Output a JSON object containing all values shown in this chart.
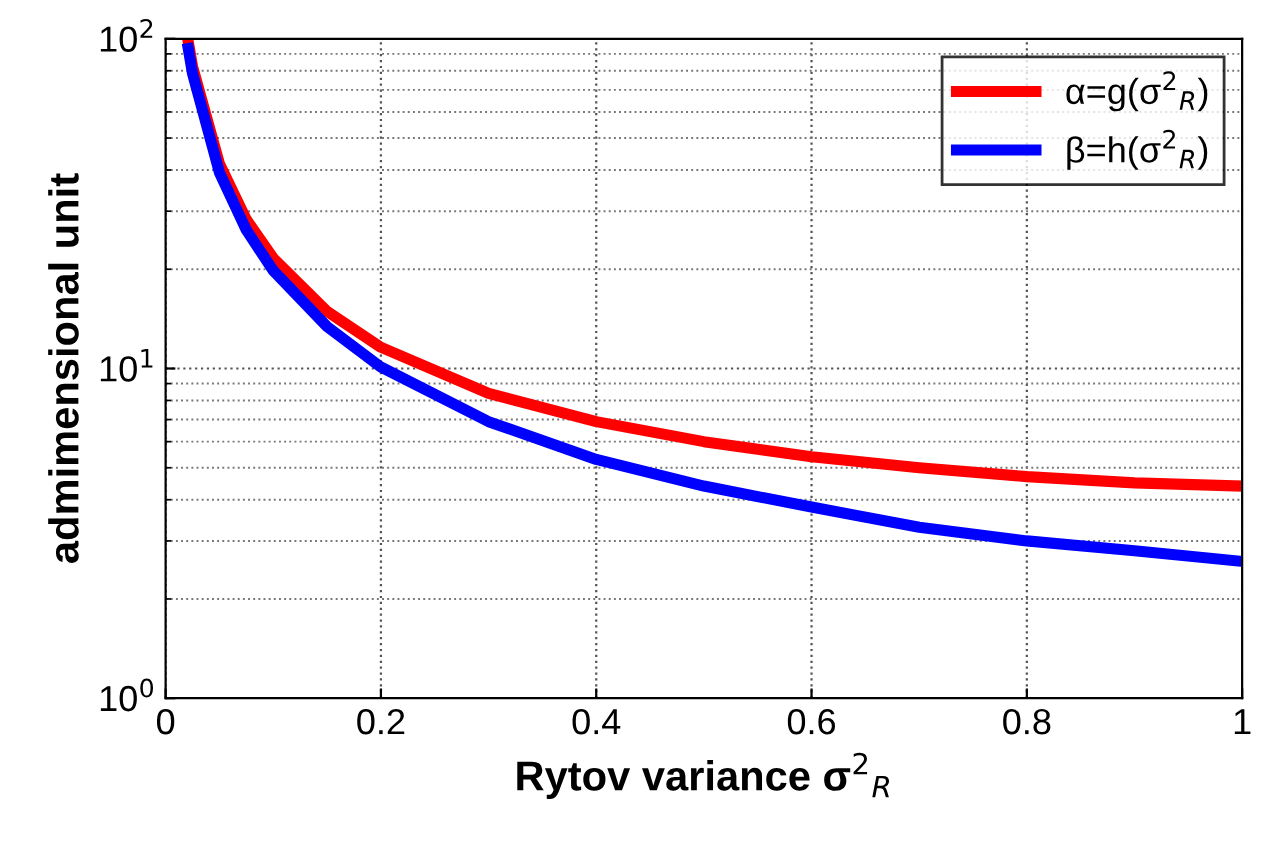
{
  "chart_data": {
    "type": "line",
    "xlabel": "Rytov variance σ$^{2}$$_{R}$",
    "ylabel": "admimensional unit",
    "x": [
      0.021,
      0.025,
      0.05,
      0.075,
      0.1,
      0.15,
      0.2,
      0.3,
      0.4,
      0.5,
      0.6,
      0.7,
      0.8,
      0.9,
      1.0
    ],
    "series": [
      {
        "name": "α=g(σ$^{2}$$_{R}$)",
        "color": "#ff0000",
        "values": [
          97.9,
          82.4,
          41.8,
          28.3,
          21.6,
          14.9,
          11.6,
          8.4,
          6.9,
          6.0,
          5.4,
          5.0,
          4.7,
          4.5,
          4.4
        ]
      },
      {
        "name": "β=h(σ$^{2}$$_{R}$)",
        "color": "#0000ff",
        "values": [
          93.4,
          78.5,
          39.3,
          26.3,
          19.8,
          13.4,
          10.1,
          6.9,
          5.3,
          4.4,
          3.8,
          3.3,
          3.0,
          2.8,
          2.6
        ]
      }
    ],
    "log": "y",
    "xlim": [
      0,
      1
    ],
    "ylim": [
      1,
      100
    ],
    "xticks": [
      0,
      0.2,
      0.4,
      0.6,
      0.8,
      1
    ],
    "yticks": [
      {
        "value": 1,
        "label": "10$^{0}$"
      },
      {
        "value": 10,
        "label": "10$^{1}$"
      },
      {
        "value": 100,
        "label": "10$^{2}$"
      }
    ],
    "grid": true,
    "legend": "top right",
    "line_style": "solid",
    "marker": "none"
  }
}
